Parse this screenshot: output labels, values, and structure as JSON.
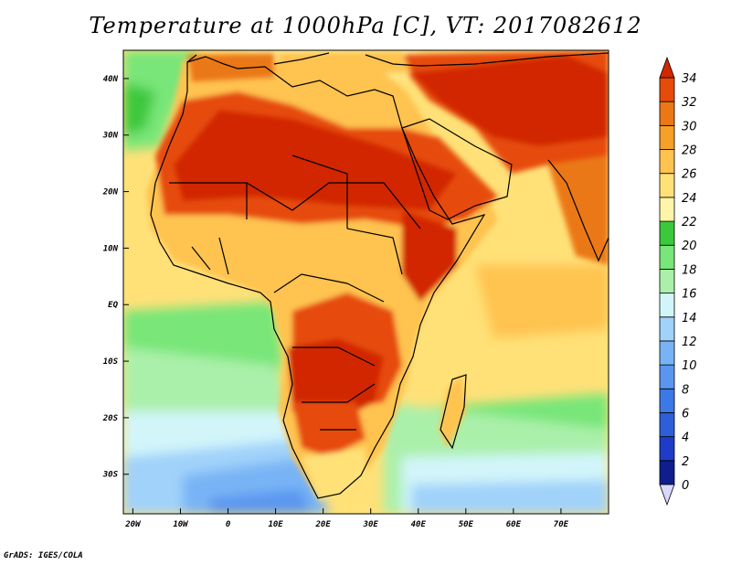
{
  "title": "Temperature at 1000hPa [C], VT: 2017082612",
  "credit": "GrADS: IGES/COLA",
  "map": {
    "lon_range": [
      -22,
      80
    ],
    "lat_range": [
      -37,
      45
    ],
    "lat_ticks": [
      {
        "value": 40,
        "label": "40N"
      },
      {
        "value": 30,
        "label": "30N"
      },
      {
        "value": 20,
        "label": "20N"
      },
      {
        "value": 10,
        "label": "10N"
      },
      {
        "value": 0,
        "label": "EQ"
      },
      {
        "value": -10,
        "label": "10S"
      },
      {
        "value": -20,
        "label": "20S"
      },
      {
        "value": -30,
        "label": "30S"
      }
    ],
    "lon_ticks": [
      {
        "value": -20,
        "label": "20W"
      },
      {
        "value": -10,
        "label": "10W"
      },
      {
        "value": 0,
        "label": "0"
      },
      {
        "value": 10,
        "label": "10E"
      },
      {
        "value": 20,
        "label": "20E"
      },
      {
        "value": 30,
        "label": "30E"
      },
      {
        "value": 40,
        "label": "40E"
      },
      {
        "value": 50,
        "label": "50E"
      },
      {
        "value": 60,
        "label": "60E"
      },
      {
        "value": 70,
        "label": "70E"
      }
    ]
  },
  "colorbar": {
    "levels": [
      "0",
      "2",
      "4",
      "6",
      "8",
      "10",
      "12",
      "14",
      "16",
      "18",
      "20",
      "22",
      "24",
      "26",
      "28",
      "30",
      "32",
      "34"
    ],
    "colors": [
      "#0f1e8c",
      "#1e3cc8",
      "#2e5fd8",
      "#3c78e6",
      "#5a96f0",
      "#78b4f5",
      "#a0d2fa",
      "#d2f5fa",
      "#aaf0aa",
      "#78e678",
      "#3cc83c",
      "#fff5aa",
      "#ffe178",
      "#ffc350",
      "#f5a028",
      "#eb7814",
      "#e64b0a",
      "#d22800"
    ]
  },
  "colors": {
    "ocean_cool": "#5aa0e6",
    "ocean_mid": "#aaf0aa",
    "land_hot": "#d22800"
  }
}
